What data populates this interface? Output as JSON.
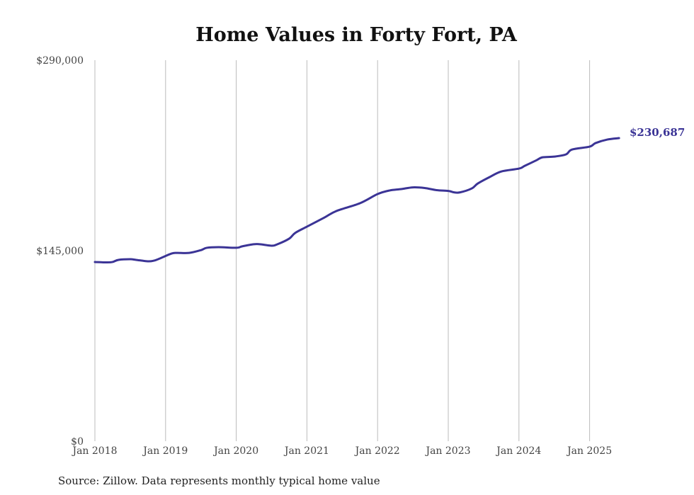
{
  "chart_data": {
    "type": "line",
    "title": "Home Values in Forty Fort, PA",
    "source": "Source: Zillow. Data represents monthly typical home value",
    "xlabel": "",
    "ylabel": "",
    "ylim": [
      0,
      290000
    ],
    "y_ticks": [
      0,
      145000,
      290000
    ],
    "y_tick_labels": [
      "$0",
      "$145,000",
      "$290,000"
    ],
    "x_tick_labels": [
      "Jan 2018",
      "Jan 2019",
      "Jan 2020",
      "Jan 2021",
      "Jan 2022",
      "Jan 2023",
      "Jan 2024",
      "Jan 2025"
    ],
    "grid": "vertical",
    "line_color": "#3b3496",
    "end_label": "$230,687",
    "series": [
      {
        "name": "Typical home value",
        "points": [
          [
            "2018-01",
            136400
          ],
          [
            "2018-03",
            136100
          ],
          [
            "2018-04",
            136400
          ],
          [
            "2018-05",
            138000
          ],
          [
            "2018-07",
            138500
          ],
          [
            "2018-08",
            138000
          ],
          [
            "2018-10",
            136900
          ],
          [
            "2018-11",
            137400
          ],
          [
            "2018-12",
            139000
          ],
          [
            "2019-02",
            142800
          ],
          [
            "2019-03",
            143300
          ],
          [
            "2019-05",
            143300
          ],
          [
            "2019-07",
            145400
          ],
          [
            "2019-08",
            147200
          ],
          [
            "2019-10",
            147700
          ],
          [
            "2020-01",
            147200
          ],
          [
            "2020-02",
            148300
          ],
          [
            "2020-04",
            149900
          ],
          [
            "2020-05",
            149900
          ],
          [
            "2020-07",
            148800
          ],
          [
            "2020-08",
            149900
          ],
          [
            "2020-10",
            154200
          ],
          [
            "2020-11",
            158500
          ],
          [
            "2021-01",
            163300
          ],
          [
            "2021-04",
            170300
          ],
          [
            "2021-06",
            175200
          ],
          [
            "2021-10",
            181100
          ],
          [
            "2022-01",
            188100
          ],
          [
            "2022-03",
            190800
          ],
          [
            "2022-05",
            191900
          ],
          [
            "2022-07",
            193200
          ],
          [
            "2022-09",
            192700
          ],
          [
            "2022-11",
            191100
          ],
          [
            "2023-01",
            190500
          ],
          [
            "2023-02",
            189400
          ],
          [
            "2023-03",
            189400
          ],
          [
            "2023-05",
            192400
          ],
          [
            "2023-06",
            196100
          ],
          [
            "2023-08",
            201000
          ],
          [
            "2023-10",
            205300
          ],
          [
            "2024-01",
            207500
          ],
          [
            "2024-02",
            209600
          ],
          [
            "2024-04",
            213900
          ],
          [
            "2024-05",
            216100
          ],
          [
            "2024-07",
            216600
          ],
          [
            "2024-09",
            218300
          ],
          [
            "2024-10",
            222000
          ],
          [
            "2025-01",
            224200
          ],
          [
            "2025-02",
            226900
          ],
          [
            "2025-04",
            229600
          ],
          [
            "2025-06",
            230687
          ]
        ]
      }
    ]
  }
}
